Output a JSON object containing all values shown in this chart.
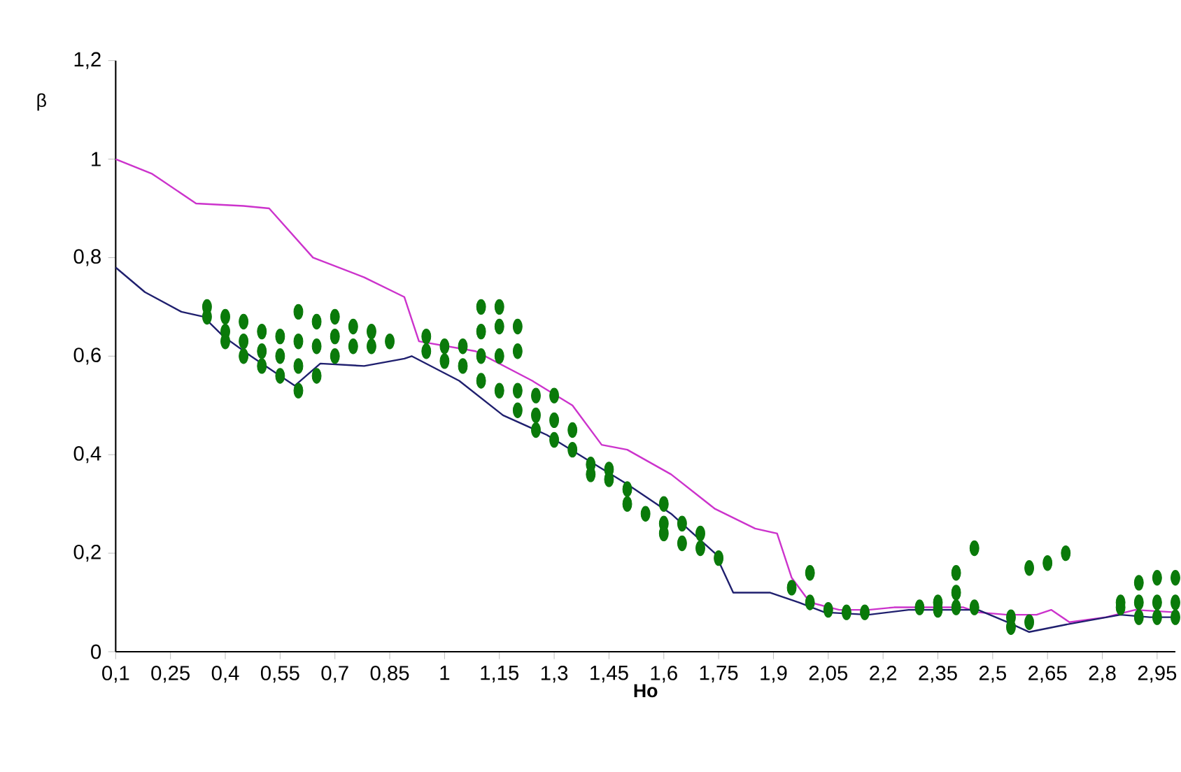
{
  "chart_data": {
    "type": "line",
    "xlabel": "Ho",
    "ylabel": "β",
    "xlim": [
      0.1,
      3.0
    ],
    "ylim": [
      0,
      1.2
    ],
    "xticks": [
      {
        "value": 0.1,
        "label": "0,1"
      },
      {
        "value": 0.25,
        "label": "0,25"
      },
      {
        "value": 0.4,
        "label": "0,4"
      },
      {
        "value": 0.55,
        "label": "0,55"
      },
      {
        "value": 0.7,
        "label": "0,7"
      },
      {
        "value": 0.85,
        "label": "0,85"
      },
      {
        "value": 1,
        "label": "1"
      },
      {
        "value": 1.15,
        "label": "1,15"
      },
      {
        "value": 1.3,
        "label": "1,3"
      },
      {
        "value": 1.45,
        "label": "1,45"
      },
      {
        "value": 1.6,
        "label": "1,6"
      },
      {
        "value": 1.75,
        "label": "1,75"
      },
      {
        "value": 1.9,
        "label": "1,9"
      },
      {
        "value": 2.05,
        "label": "2,05"
      },
      {
        "value": 2.2,
        "label": "2,2"
      },
      {
        "value": 2.35,
        "label": "2,35"
      },
      {
        "value": 2.5,
        "label": "2,5"
      },
      {
        "value": 2.65,
        "label": "2,65"
      },
      {
        "value": 2.8,
        "label": "2,8"
      },
      {
        "value": 2.95,
        "label": "2,95"
      }
    ],
    "yticks": [
      0,
      {
        "value": 0.2,
        "label": "0,2"
      },
      {
        "value": 0.4,
        "label": "0,4"
      },
      {
        "value": 0.6,
        "label": "0,6"
      },
      {
        "value": 0.8,
        "label": "0,8"
      },
      1,
      {
        "value": 1.2,
        "label": "1,2"
      }
    ],
    "series": [
      {
        "type": "line",
        "marker": "none",
        "color": "#cc33cc",
        "x": [
          0.1,
          0.2,
          0.32,
          0.45,
          0.52,
          0.64,
          0.78,
          0.89,
          0.93,
          1.085,
          1.24,
          1.35,
          1.43,
          1.5,
          1.62,
          1.74,
          1.85,
          1.91,
          1.95,
          2.0,
          2.08,
          2.16,
          2.23,
          2.31,
          2.42,
          2.46,
          2.54,
          2.62,
          2.66,
          2.71,
          2.81,
          2.89,
          3.0
        ],
        "values": [
          1.0,
          0.97,
          0.91,
          0.905,
          0.9,
          0.8,
          0.76,
          0.72,
          0.63,
          0.61,
          0.55,
          0.5,
          0.42,
          0.41,
          0.36,
          0.29,
          0.25,
          0.24,
          0.15,
          0.1,
          0.085,
          0.085,
          0.09,
          0.09,
          0.09,
          0.08,
          0.075,
          0.075,
          0.085,
          0.06,
          0.07,
          0.085,
          0.08
        ]
      },
      {
        "type": "line",
        "marker": "none",
        "color": "#1f1f6e",
        "x": [
          0.1,
          0.18,
          0.28,
          0.34,
          0.395,
          0.47,
          0.55,
          0.59,
          0.66,
          0.78,
          0.89,
          0.91,
          1.04,
          1.16,
          1.28,
          1.39,
          1.5,
          1.62,
          1.74,
          1.79,
          1.89,
          1.97,
          2.04,
          2.16,
          2.27,
          2.46,
          2.54,
          2.6,
          2.7,
          2.85,
          2.93,
          3.0
        ],
        "values": [
          0.78,
          0.73,
          0.69,
          0.68,
          0.64,
          0.6,
          0.56,
          0.54,
          0.585,
          0.58,
          0.595,
          0.6,
          0.55,
          0.48,
          0.44,
          0.39,
          0.34,
          0.28,
          0.2,
          0.12,
          0.12,
          0.1,
          0.08,
          0.075,
          0.085,
          0.085,
          0.06,
          0.04,
          0.055,
          0.075,
          0.07,
          0.07
        ]
      },
      {
        "type": "scatter",
        "color": "#0a7a0a",
        "marker": "circle",
        "x": [
          0.35,
          0.35,
          0.4,
          0.4,
          0.4,
          0.45,
          0.45,
          0.45,
          0.5,
          0.5,
          0.5,
          0.55,
          0.55,
          0.55,
          0.6,
          0.6,
          0.6,
          0.6,
          0.65,
          0.65,
          0.65,
          0.7,
          0.7,
          0.7,
          0.75,
          0.75,
          0.8,
          0.8,
          0.85,
          0.95,
          0.95,
          1.0,
          1.0,
          1.05,
          1.05,
          1.1,
          1.1,
          1.1,
          1.1,
          1.15,
          1.15,
          1.15,
          1.15,
          1.2,
          1.2,
          1.2,
          1.2,
          1.25,
          1.25,
          1.25,
          1.3,
          1.3,
          1.3,
          1.35,
          1.35,
          1.4,
          1.4,
          1.45,
          1.45,
          1.5,
          1.5,
          1.55,
          1.6,
          1.6,
          1.6,
          1.65,
          1.65,
          1.7,
          1.7,
          1.75,
          1.95,
          2.0,
          2.0,
          2.05,
          2.1,
          2.15,
          2.3,
          2.35,
          2.35,
          2.4,
          2.4,
          2.4,
          2.45,
          2.45,
          2.55,
          2.55,
          2.6,
          2.6,
          2.65,
          2.7,
          2.85,
          2.85,
          2.9,
          2.9,
          2.9,
          2.95,
          2.95,
          2.95,
          3.0,
          3.0,
          3.0
        ],
        "values": [
          0.7,
          0.68,
          0.68,
          0.65,
          0.63,
          0.67,
          0.63,
          0.6,
          0.65,
          0.61,
          0.58,
          0.64,
          0.6,
          0.56,
          0.69,
          0.63,
          0.58,
          0.53,
          0.67,
          0.62,
          0.56,
          0.68,
          0.64,
          0.6,
          0.66,
          0.62,
          0.65,
          0.62,
          0.63,
          0.64,
          0.61,
          0.62,
          0.59,
          0.62,
          0.58,
          0.7,
          0.65,
          0.6,
          0.55,
          0.7,
          0.66,
          0.6,
          0.53,
          0.66,
          0.61,
          0.53,
          0.49,
          0.52,
          0.48,
          0.45,
          0.52,
          0.47,
          0.43,
          0.45,
          0.41,
          0.38,
          0.36,
          0.37,
          0.35,
          0.33,
          0.3,
          0.28,
          0.3,
          0.26,
          0.24,
          0.26,
          0.22,
          0.24,
          0.21,
          0.19,
          0.13,
          0.16,
          0.1,
          0.085,
          0.08,
          0.08,
          0.09,
          0.1,
          0.085,
          0.16,
          0.12,
          0.09,
          0.21,
          0.09,
          0.07,
          0.05,
          0.17,
          0.06,
          0.18,
          0.2,
          0.1,
          0.09,
          0.14,
          0.1,
          0.07,
          0.15,
          0.1,
          0.07,
          0.15,
          0.1,
          0.07
        ]
      }
    ]
  }
}
